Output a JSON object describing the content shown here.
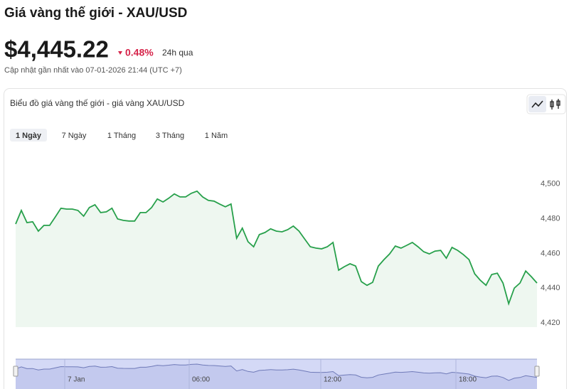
{
  "header": {
    "title": "Giá vàng thế giới - XAU/USD",
    "price": "$4,445.22",
    "change": "0.48%",
    "period": "24h qua",
    "updated": "Cập nhật gần nhất vào 07-01-2026 21:44 (UTC +7)"
  },
  "card": {
    "title": "Biểu đồ giá vàng thế giới - giá vàng XAU/USD",
    "tabs": [
      "1 Ngày",
      "7 Ngày",
      "1 Tháng",
      "3 Tháng",
      "1 Năm"
    ],
    "active_tab": 0
  },
  "chart_data": {
    "type": "area",
    "color": "#27a04b",
    "values": [
      4477.0,
      4484.8,
      4477.8,
      4478.3,
      4472.9,
      4476.2,
      4476.2,
      4481.1,
      4486.1,
      4485.6,
      4485.6,
      4484.8,
      4481.5,
      4486.5,
      4488.1,
      4483.6,
      4484.0,
      4486.1,
      4479.9,
      4479.1,
      4478.7,
      4478.7,
      4483.6,
      4483.6,
      4486.5,
      4491.4,
      4489.7,
      4491.8,
      4494.3,
      4492.6,
      4492.6,
      4494.7,
      4495.9,
      4492.6,
      4490.6,
      4490.2,
      4488.5,
      4486.9,
      4488.5,
      4468.8,
      4474.6,
      4466.8,
      4463.9,
      4470.9,
      4472.1,
      4474.2,
      4472.9,
      4472.5,
      4473.7,
      4475.8,
      4472.9,
      4468.4,
      4463.9,
      4463.1,
      4462.7,
      4463.9,
      4466.4,
      4450.4,
      4452.4,
      4454.1,
      4452.8,
      4443.8,
      4441.7,
      4443.4,
      4452.8,
      4456.5,
      4459.8,
      4464.3,
      4463.1,
      4464.7,
      4466.4,
      4463.9,
      4461.0,
      4459.8,
      4461.4,
      4461.8,
      4457.3,
      4463.5,
      4461.8,
      4459.4,
      4456.5,
      4448.3,
      4444.6,
      4441.7,
      4447.9,
      4448.7,
      4443.0,
      4431.1,
      4440.1,
      4443.0,
      4449.9,
      4446.7,
      4443.0
    ],
    "ylim": [
      4417.6,
      4520
    ],
    "yticks": [
      {
        "value": 4420,
        "label": "4,420"
      },
      {
        "value": 4440,
        "label": "4,440"
      },
      {
        "value": 4460,
        "label": "4,460"
      },
      {
        "value": 4480,
        "label": "4,480"
      },
      {
        "value": 4500,
        "label": "4,500"
      }
    ],
    "navigator_labels": [
      "7 Jan",
      "06:00",
      "12:00",
      "18:00"
    ]
  }
}
